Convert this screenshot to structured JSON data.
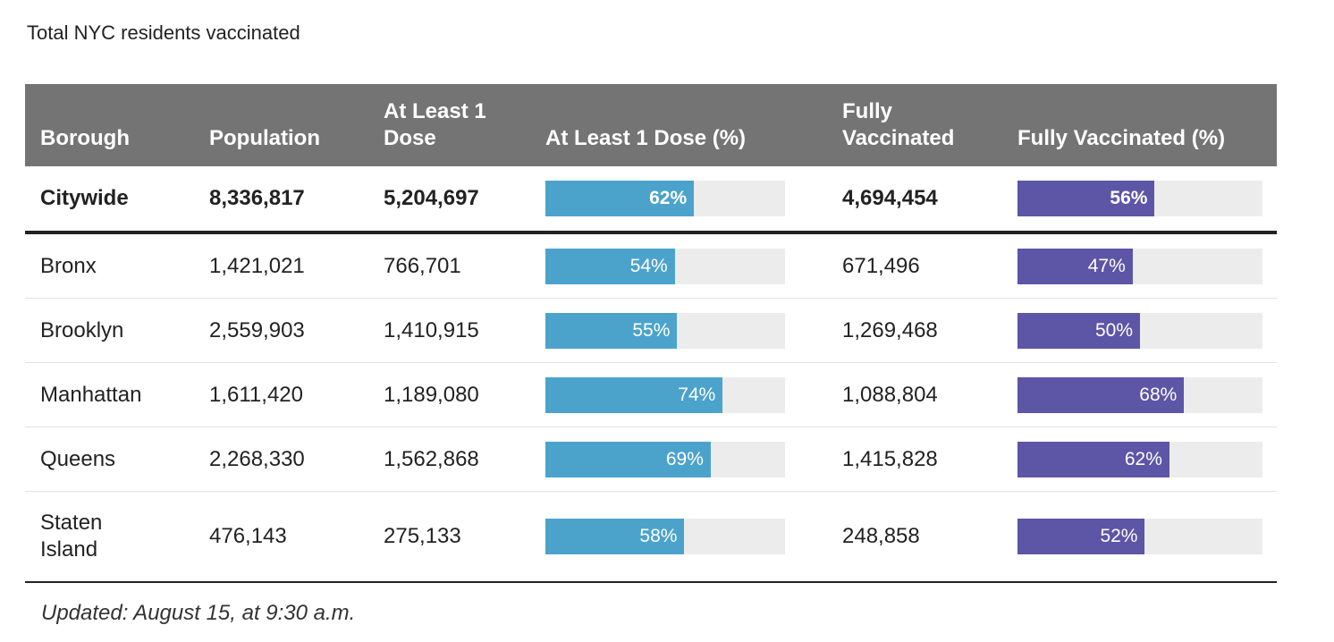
{
  "title": "Total NYC residents vaccinated",
  "colors": {
    "header_bg": "#747474",
    "dose_bar": "#4ba3cc",
    "full_bar": "#5d55a6",
    "track": "#ececec"
  },
  "chart_data": {
    "type": "table",
    "columns": [
      "Borough",
      "Population",
      "At Least 1 Dose",
      "At Least 1 Dose (%)",
      "Fully Vaccinated",
      "Fully Vaccinated (%)"
    ],
    "header": {
      "borough": "Borough",
      "population": "Population",
      "dose1": "At Least 1 Dose",
      "dose1_pct": "At Least 1 Dose (%)",
      "full": "Fully Vaccinated",
      "full_pct": "Fully Vaccinated (%)"
    },
    "rows": [
      {
        "borough": "Citywide",
        "population": "8,336,817",
        "dose1": "5,204,697",
        "dose1_pct": 62,
        "dose1_pct_label": "62%",
        "full": "4,694,454",
        "full_pct": 56,
        "full_pct_label": "56%"
      },
      {
        "borough": "Bronx",
        "population": "1,421,021",
        "dose1": "766,701",
        "dose1_pct": 54,
        "dose1_pct_label": "54%",
        "full": "671,496",
        "full_pct": 47,
        "full_pct_label": "47%"
      },
      {
        "borough": "Brooklyn",
        "population": "2,559,903",
        "dose1": "1,410,915",
        "dose1_pct": 55,
        "dose1_pct_label": "55%",
        "full": "1,269,468",
        "full_pct": 50,
        "full_pct_label": "50%"
      },
      {
        "borough": "Manhattan",
        "population": "1,611,420",
        "dose1": "1,189,080",
        "dose1_pct": 74,
        "dose1_pct_label": "74%",
        "full": "1,088,804",
        "full_pct": 68,
        "full_pct_label": "68%"
      },
      {
        "borough": "Queens",
        "population": "2,268,330",
        "dose1": "1,562,868",
        "dose1_pct": 69,
        "dose1_pct_label": "69%",
        "full": "1,415,828",
        "full_pct": 62,
        "full_pct_label": "62%"
      },
      {
        "borough": "Staten Island",
        "population": "476,143",
        "dose1": "275,133",
        "dose1_pct": 58,
        "dose1_pct_label": "58%",
        "full": "248,858",
        "full_pct": 52,
        "full_pct_label": "52%"
      }
    ]
  },
  "footer": "Updated: August 15, at 9:30 a.m."
}
